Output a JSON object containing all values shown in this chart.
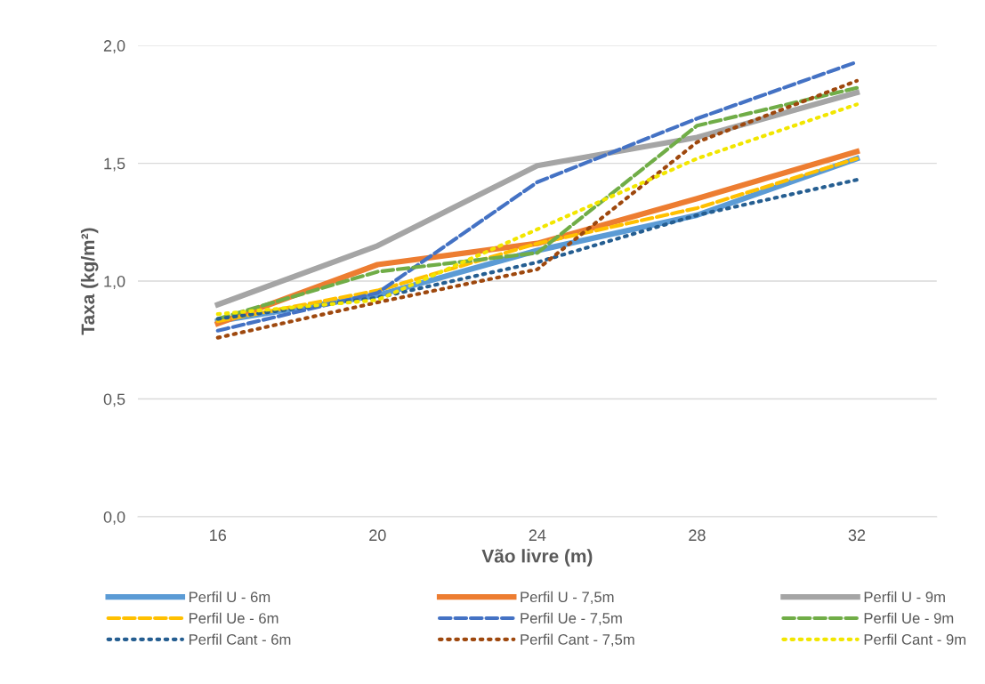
{
  "chart_data": {
    "type": "line",
    "xlabel": "Vão livre (m)",
    "ylabel": "Taxa (kg/m²)",
    "categories": [
      "16",
      "20",
      "24",
      "28",
      "32"
    ],
    "ylim": [
      0,
      2
    ],
    "yticks": [
      {
        "value": 0,
        "label": "0,0"
      },
      {
        "value": 0.5,
        "label": "0,5"
      },
      {
        "value": 1,
        "label": "1,0"
      },
      {
        "value": 1.5,
        "label": "1,5"
      },
      {
        "value": 2,
        "label": "2,0"
      }
    ],
    "grid": "y",
    "legend": "bottom",
    "marker": "none",
    "series": [
      {
        "name": "Perfil U - 6m",
        "color": "#5b9bd5",
        "line_style": "solid",
        "values": [
          0.83,
          0.94,
          1.13,
          1.28,
          1.52
        ]
      },
      {
        "name": "Perfil U - 7,5m",
        "color": "#ed7d31",
        "line_style": "solid",
        "values": [
          0.82,
          1.07,
          1.16,
          1.35,
          1.55
        ]
      },
      {
        "name": "Perfil U - 9m",
        "color": "#a5a5a5",
        "line_style": "solid",
        "values": [
          0.9,
          1.15,
          1.49,
          1.61,
          1.8
        ]
      },
      {
        "name": "Perfil Ue - 6m",
        "color": "#ffc000",
        "line_style": "dashed",
        "values": [
          0.83,
          0.96,
          1.16,
          1.31,
          1.52
        ]
      },
      {
        "name": "Perfil Ue - 7,5m",
        "color": "#4472c4",
        "line_style": "dashed",
        "values": [
          0.79,
          0.95,
          1.42,
          1.69,
          1.93
        ]
      },
      {
        "name": "Perfil Ue - 9m",
        "color": "#70ad47",
        "line_style": "dashed",
        "values": [
          0.84,
          1.04,
          1.12,
          1.66,
          1.82
        ]
      },
      {
        "name": "Perfil Cant - 6m",
        "color": "#255e91",
        "line_style": "dotted",
        "values": [
          0.84,
          0.93,
          1.08,
          1.28,
          1.43
        ]
      },
      {
        "name": "Perfil Cant - 7,5m",
        "color": "#9e480e",
        "line_style": "dotted",
        "values": [
          0.76,
          0.91,
          1.05,
          1.59,
          1.85
        ]
      },
      {
        "name": "Perfil Cant - 9m",
        "color": "#f2e600",
        "line_style": "dotted",
        "values": [
          0.86,
          0.92,
          1.22,
          1.52,
          1.75
        ]
      }
    ]
  }
}
